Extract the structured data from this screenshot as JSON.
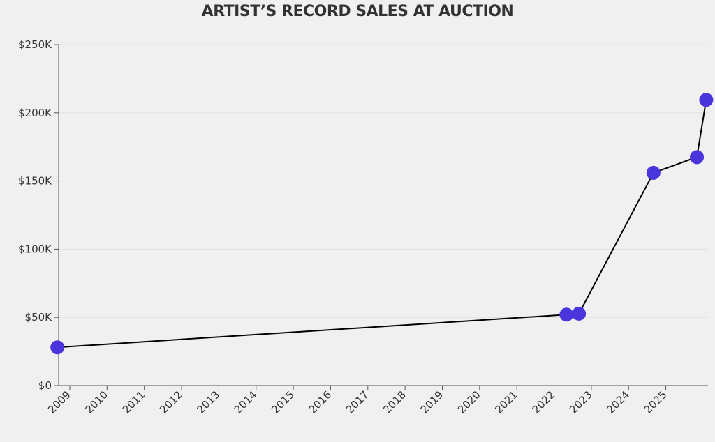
{
  "chart_data": {
    "type": "line",
    "title": "ARTIST’S RECORD SALES AT AUCTION",
    "xlabel": "",
    "ylabel": "",
    "x_ticks": [
      "2009",
      "2010",
      "2011",
      "2012",
      "2013",
      "2014",
      "2015",
      "2016",
      "2017",
      "2018",
      "2019",
      "2020",
      "2021",
      "2022",
      "2023",
      "2024",
      "2025"
    ],
    "y_ticks": [
      "$0",
      "$50K",
      "$100K",
      "$150K",
      "$200K",
      "$250K"
    ],
    "ylim": [
      0,
      250000
    ],
    "xlim": [
      "2008-09",
      "2026-02"
    ],
    "grid": "horizontal",
    "line_color": "#000000",
    "marker_color": "#4a35dc",
    "points": [
      {
        "x": "2008-09",
        "y": 28000
      },
      {
        "x": "2022-05",
        "y": 52000
      },
      {
        "x": "2022-09",
        "y": 52700
      },
      {
        "x": "2024-09",
        "y": 156000
      },
      {
        "x": "2025-11",
        "y": 167500
      },
      {
        "x": "2026-02",
        "y": 209500
      }
    ]
  }
}
